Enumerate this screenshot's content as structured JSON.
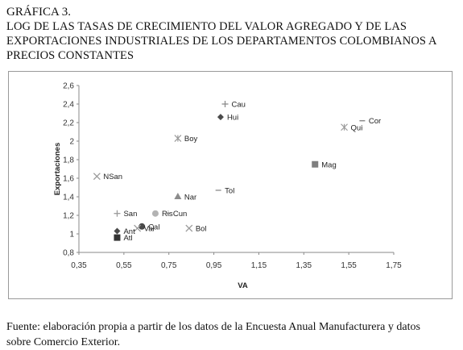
{
  "figure": {
    "label": "GRÁFICA 3.",
    "title_lines": [
      "LOG DE LAS TASAS DE CRECIMIENTO DEL VALOR AGREGADO Y DE LAS",
      "EXPORTACIONES INDUSTRIALES DE LOS DEPARTAMENTOS COLOMBIANOS A",
      "PRECIOS CONSTANTES"
    ]
  },
  "source_lines": [
    "Fuente: elaboración propia a partir de los datos de la Encuesta Anual Manufacturera y datos",
    "sobre Comercio Exterior."
  ],
  "chart_data": {
    "type": "scatter",
    "xlabel": "VA",
    "ylabel": "Exportaciones",
    "xlim": [
      0.35,
      1.75
    ],
    "ylim": [
      0.8,
      2.6
    ],
    "xticks": [
      "0,35",
      "0,55",
      "0,75",
      "0,95",
      "1,15",
      "1,35",
      "1,55",
      "1,75"
    ],
    "yticks": [
      "0,8",
      "1",
      "1,2",
      "1,4",
      "1,6",
      "1,8",
      "2",
      "2,2",
      "2,4",
      "2,6"
    ],
    "grid": false,
    "legend": "none",
    "points": [
      {
        "name": "Cau",
        "x": 1.0,
        "y": 2.4,
        "marker": "plus",
        "color": "#8c8c8c"
      },
      {
        "name": "Hui",
        "x": 0.98,
        "y": 2.26,
        "marker": "diamond",
        "color": "#4a4a4a"
      },
      {
        "name": "Cor",
        "x": 1.61,
        "y": 2.22,
        "marker": "dash",
        "color": "#8c8c8c"
      },
      {
        "name": "Qui",
        "x": 1.53,
        "y": 2.15,
        "marker": "asterisk",
        "color": "#9a9a9a"
      },
      {
        "name": "Boy",
        "x": 0.79,
        "y": 2.03,
        "marker": "asterisk",
        "color": "#9a9a9a"
      },
      {
        "name": "Mag",
        "x": 1.4,
        "y": 1.75,
        "marker": "square",
        "color": "#7f7f7f"
      },
      {
        "name": "NSan",
        "x": 0.43,
        "y": 1.62,
        "marker": "x",
        "color": "#9a9a9a"
      },
      {
        "name": "Tol",
        "x": 0.97,
        "y": 1.47,
        "marker": "dash",
        "color": "#9a9a9a"
      },
      {
        "name": "Nar",
        "x": 0.79,
        "y": 1.4,
        "marker": "triangle",
        "color": "#8c8c8c"
      },
      {
        "name": "San",
        "x": 0.52,
        "y": 1.22,
        "marker": "plus",
        "color": "#9a9a9a"
      },
      {
        "name": "Ris",
        "x": 0.69,
        "y": 1.22,
        "marker": "circle",
        "color": "#b3b3b3"
      },
      {
        "name": "Cun",
        "x": 0.74,
        "y": 1.22,
        "marker": "dash",
        "color": "#8c8c8c"
      },
      {
        "name": "Cal",
        "x": 0.63,
        "y": 1.08,
        "marker": "circle",
        "color": "#4a4a4a"
      },
      {
        "name": "Val",
        "x": 0.61,
        "y": 1.06,
        "marker": "x",
        "color": "#9a9a9a"
      },
      {
        "name": "Bol",
        "x": 0.84,
        "y": 1.06,
        "marker": "x",
        "color": "#9a9a9a"
      },
      {
        "name": "Ant",
        "x": 0.52,
        "y": 1.03,
        "marker": "diamond",
        "color": "#4a4a4a"
      },
      {
        "name": "Atl",
        "x": 0.52,
        "y": 0.96,
        "marker": "square",
        "color": "#333333"
      }
    ]
  }
}
